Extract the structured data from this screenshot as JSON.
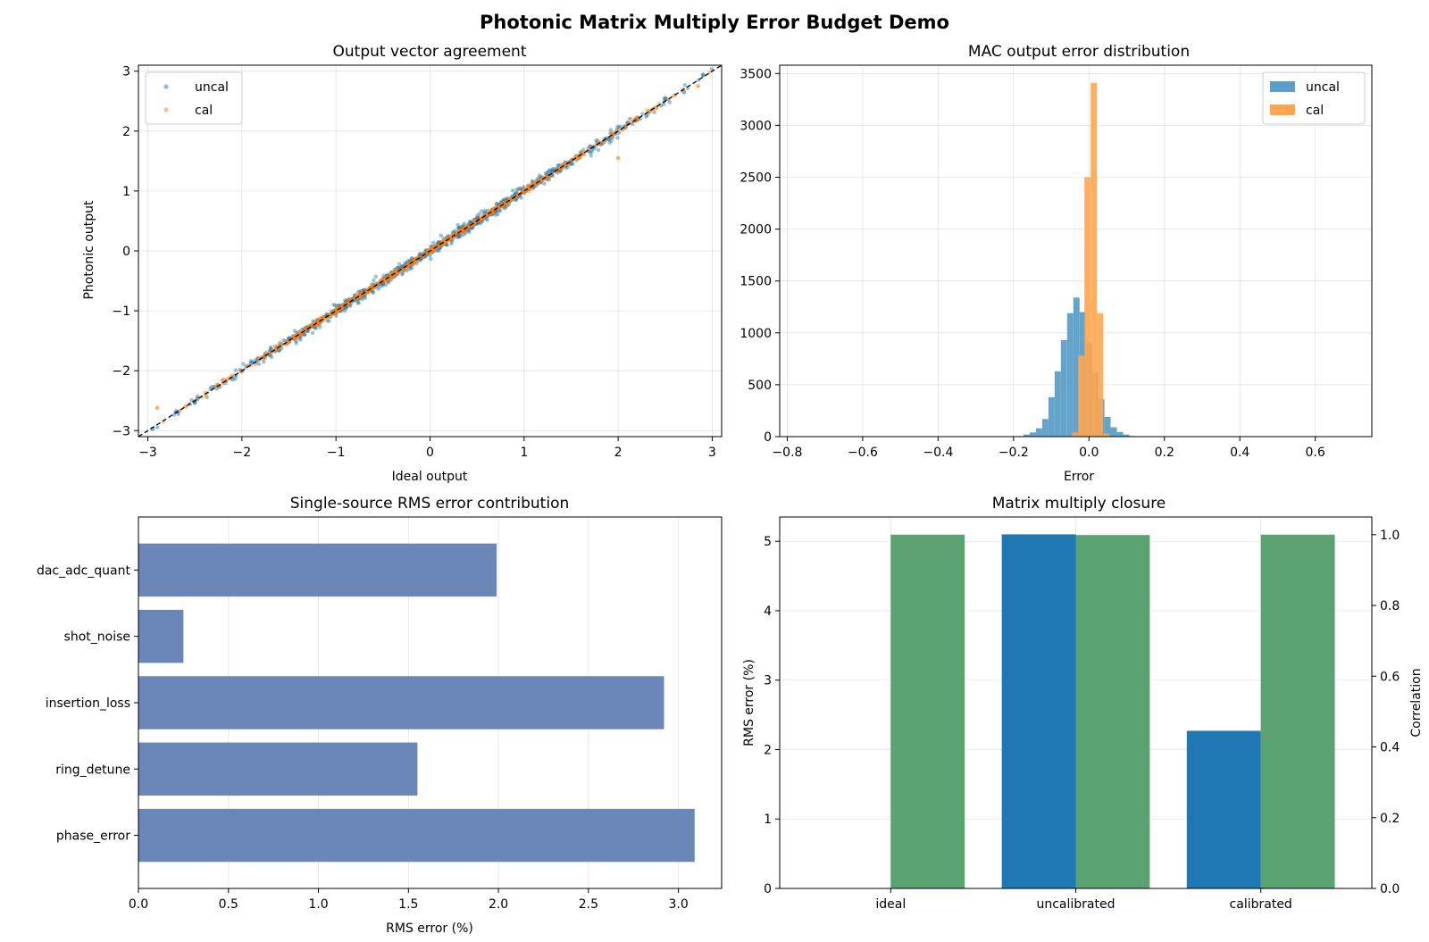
{
  "figure": {
    "title": "Photonic Matrix Multiply Error Budget Demo"
  },
  "colors": {
    "uncal": "#1f77b4",
    "cal": "#ff7f0e",
    "hist_uncal": "#5b9ec9",
    "hist_cal": "#ffa54f",
    "bar_source": "#6b86b8",
    "rms_bar": "#1f77b4",
    "corr_bar": "#5aa272",
    "diagonal": "#000000"
  },
  "chart_data": [
    {
      "id": "scatter",
      "type": "scatter",
      "title": "Output vector agreement",
      "xlabel": "Ideal output",
      "ylabel": "Photonic output",
      "xlim": [
        -3.1,
        3.1
      ],
      "ylim": [
        -3.1,
        3.1
      ],
      "xticks": [
        -3,
        -2,
        -1,
        0,
        1,
        2,
        3
      ],
      "yticks": [
        -3,
        -2,
        -1,
        0,
        1,
        2,
        3
      ],
      "grid": true,
      "legend_position": "upper-left",
      "reference_line": "y = x (dashed)",
      "series": [
        {
          "name": "uncal",
          "x": [
            -2.95,
            -2.7,
            -2.5,
            -2.3,
            -2.1,
            -1.9,
            -1.7,
            -1.5,
            -1.3,
            -1.1,
            -0.9,
            -0.7,
            -0.5,
            -0.3,
            -0.1,
            0.1,
            0.3,
            0.5,
            0.7,
            0.9,
            1.1,
            1.3,
            1.5,
            1.7,
            1.9,
            2.1,
            2.3,
            2.5,
            2.7,
            2.9
          ],
          "y": [
            -2.97,
            -2.68,
            -2.53,
            -2.27,
            -2.14,
            -1.87,
            -1.74,
            -1.46,
            -1.34,
            -1.07,
            -0.94,
            -0.66,
            -0.55,
            -0.26,
            -0.14,
            0.13,
            0.26,
            0.55,
            0.66,
            0.94,
            1.06,
            1.34,
            1.45,
            1.74,
            1.86,
            2.14,
            2.25,
            2.55,
            2.65,
            2.94
          ]
        },
        {
          "name": "cal",
          "x": [
            -2.9,
            -2.6,
            -2.2,
            -1.8,
            -1.4,
            -1.0,
            -0.6,
            -0.2,
            0.2,
            0.6,
            1.0,
            1.4,
            1.8,
            2.0,
            2.2,
            2.6,
            2.85
          ],
          "y": [
            -2.62,
            -2.6,
            -2.21,
            -1.79,
            -1.41,
            -1.0,
            -0.61,
            -0.2,
            0.2,
            0.61,
            1.0,
            1.41,
            1.79,
            1.55,
            2.2,
            2.6,
            2.75
          ]
        }
      ]
    },
    {
      "id": "hist",
      "type": "histogram",
      "title": "MAC output error distribution",
      "xlabel": "Error",
      "ylabel": "",
      "xlim": [
        -0.82,
        0.75
      ],
      "ylim": [
        0,
        3580
      ],
      "xticks": [
        -0.8,
        -0.6,
        -0.4,
        -0.2,
        0.0,
        0.2,
        0.4,
        0.6
      ],
      "yticks": [
        0,
        500,
        1000,
        1500,
        2000,
        2500,
        3000,
        3500
      ],
      "grid": true,
      "legend_position": "upper-right",
      "series": [
        {
          "name": "uncal",
          "bin_start": -0.19,
          "bin_width": 0.0165,
          "counts": [
            5,
            20,
            40,
            80,
            170,
            380,
            630,
            930,
            1190,
            1340,
            1200,
            900,
            620,
            360,
            190,
            90,
            45,
            20,
            6
          ]
        },
        {
          "name": "cal",
          "bin_start": -0.045,
          "bin_width": 0.0165,
          "counts": [
            40,
            780,
            2500,
            3410,
            1190,
            30
          ]
        }
      ]
    },
    {
      "id": "sources",
      "type": "bar",
      "orientation": "horizontal",
      "title": "Single-source RMS error contribution",
      "xlabel": "RMS error (%)",
      "ylabel": "",
      "xlim": [
        0,
        3.24
      ],
      "xticks": [
        0.0,
        0.5,
        1.0,
        1.5,
        2.0,
        2.5,
        3.0
      ],
      "grid": true,
      "categories": [
        "phase_error",
        "ring_detune",
        "insertion_loss",
        "shot_noise",
        "dac_adc_quant"
      ],
      "values": [
        3.09,
        1.55,
        2.92,
        0.25,
        1.99
      ]
    },
    {
      "id": "closure",
      "type": "bar",
      "title": "Matrix multiply closure",
      "xlabel": "",
      "ylabel": "RMS error (%)",
      "ylabel_right": "Correlation",
      "ylim": [
        0,
        5.35
      ],
      "ylim_right": [
        0,
        1.05
      ],
      "yticks": [
        0,
        1,
        2,
        3,
        4,
        5
      ],
      "yticks_right": [
        0.0,
        0.2,
        0.4,
        0.6,
        0.8,
        1.0
      ],
      "grid": true,
      "categories": [
        "ideal",
        "uncalibrated",
        "calibrated"
      ],
      "series": [
        {
          "name": "RMS error (%)",
          "axis": "left",
          "values": [
            0.0,
            5.1,
            2.27
          ]
        },
        {
          "name": "Correlation",
          "axis": "right",
          "values": [
            1.0,
            0.999,
            1.0
          ]
        }
      ]
    }
  ]
}
